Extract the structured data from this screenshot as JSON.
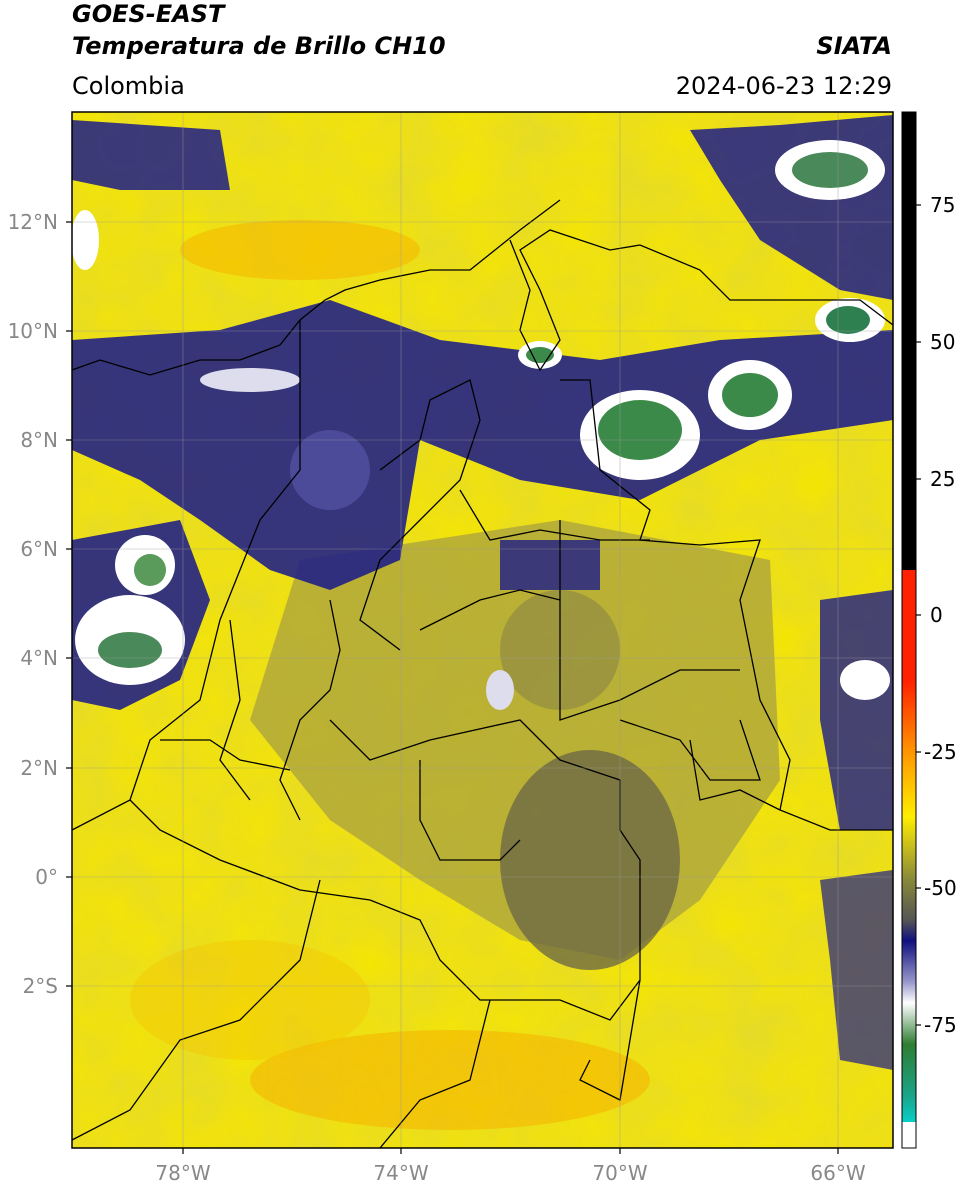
{
  "header": {
    "satellite": "GOES-EAST",
    "product": "Temperatura de Brillo CH10",
    "agency": "SIATA",
    "region": "Colombia",
    "datetime": "2024-06-23 12:29"
  },
  "map": {
    "lat_labels": [
      "12°N",
      "10°N",
      "8°N",
      "6°N",
      "4°N",
      "2°N",
      "0°",
      "2°S"
    ],
    "lon_labels": [
      "78°W",
      "74°W",
      "70°W",
      "66°W"
    ]
  },
  "colorbar": {
    "ticks": [
      "75",
      "50",
      "25",
      "0",
      "-25",
      "-50",
      "-75"
    ],
    "colors": {
      "warm": "#000000",
      "red": "#ff2200",
      "orange": "#ff9900",
      "yellow": "#ffee00",
      "olive": "#8a8a3a",
      "gray": "#555555",
      "navy": "#101080",
      "white": "#ffffff",
      "green": "#2e7d32",
      "teal": "#1aa58a",
      "cyan": "#00e0e0"
    }
  }
}
